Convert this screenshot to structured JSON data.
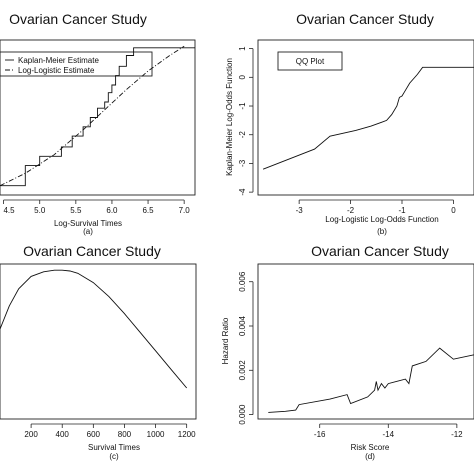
{
  "chart_data": [
    {
      "type": "line",
      "title": "Ovarian Cancer Study",
      "xlabel": "Log-Survival Times",
      "caption": "(a)",
      "xticks": [
        "4.5",
        "5.0",
        "5.5",
        "6.0",
        "6.5",
        "7.0"
      ],
      "xlim": [
        4.45,
        7.15
      ],
      "ylim": [
        0,
        1
      ],
      "legend": {
        "placement": "top-left",
        "entries": [
          "Kaplan-Meier Estimate",
          "Log-Logistic Estimate"
        ]
      },
      "series": [
        {
          "name": "Kaplan-Meier Estimate",
          "style": "step",
          "x": [
            4.45,
            4.8,
            4.8,
            5.0,
            5.0,
            5.3,
            5.3,
            5.45,
            5.45,
            5.6,
            5.6,
            5.7,
            5.7,
            5.8,
            5.8,
            5.9,
            5.9,
            5.95,
            5.95,
            6.0,
            6.0,
            6.05,
            6.05,
            6.1,
            6.1,
            6.2,
            6.2,
            6.3,
            6.3,
            6.4,
            6.4,
            7.15
          ],
          "y": [
            0.06,
            0.06,
            0.19,
            0.19,
            0.25,
            0.25,
            0.31,
            0.31,
            0.38,
            0.38,
            0.44,
            0.44,
            0.5,
            0.5,
            0.56,
            0.56,
            0.6,
            0.6,
            0.66,
            0.66,
            0.71,
            0.71,
            0.77,
            0.77,
            0.83,
            0.83,
            0.9,
            0.9,
            0.95,
            0.95,
            0.95,
            0.95
          ]
        },
        {
          "name": "Log-Logistic Estimate",
          "style": "dashdot",
          "x": [
            4.45,
            4.8,
            5.2,
            5.6,
            5.9,
            6.2,
            6.5,
            6.8,
            7.0
          ],
          "y": [
            0.06,
            0.14,
            0.26,
            0.42,
            0.55,
            0.68,
            0.8,
            0.9,
            0.96
          ]
        }
      ]
    },
    {
      "type": "line",
      "title": "Ovarian Cancer Study",
      "xlabel": "Log-Logistic Log-Odds Function",
      "ylabel": "Kaplan-Meier Log-Odds Function",
      "caption": "(b)",
      "xticks": [
        "-3",
        "-2",
        "-1",
        "0"
      ],
      "yticks": [
        "1",
        "0",
        "-1",
        "-2",
        "-3",
        "-4"
      ],
      "xlim": [
        -3.8,
        0.4
      ],
      "ylim": [
        -4.1,
        1.3
      ],
      "legend": {
        "placement": "top-left",
        "entries": [
          "QQ Plot"
        ]
      },
      "series": [
        {
          "name": "QQ Plot",
          "x": [
            -3.7,
            -2.7,
            -2.4,
            -1.9,
            -1.6,
            -1.3,
            -1.2,
            -1.1,
            -1.05,
            -1.0,
            -0.95,
            -0.85,
            -0.7,
            -0.6,
            -0.4,
            0.4
          ],
          "y": [
            -3.2,
            -2.5,
            -2.05,
            -1.85,
            -1.7,
            -1.5,
            -1.3,
            -1.0,
            -0.7,
            -0.65,
            -0.5,
            -0.2,
            0.1,
            0.35,
            0.35,
            0.35
          ]
        }
      ]
    },
    {
      "type": "line",
      "title": "Ovarian Cancer Study",
      "xlabel": "Survival Times",
      "caption": "(c)",
      "xticks": [
        "200",
        "400",
        "600",
        "800",
        "1000",
        "1200"
      ],
      "xlim": [
        0,
        1260
      ],
      "ylim": [
        0,
        1
      ],
      "series": [
        {
          "name": "",
          "x": [
            0,
            60,
            120,
            200,
            280,
            350,
            400,
            450,
            500,
            600,
            700,
            800,
            900,
            1000,
            1100,
            1200
          ],
          "y": [
            0.58,
            0.73,
            0.84,
            0.92,
            0.95,
            0.96,
            0.96,
            0.955,
            0.94,
            0.88,
            0.79,
            0.68,
            0.56,
            0.44,
            0.32,
            0.2
          ]
        }
      ]
    },
    {
      "type": "line",
      "title": "Ovarian Cancer Study",
      "xlabel": "Risk Score",
      "ylabel": "Hazard Ratio",
      "caption": "(d)",
      "xticks": [
        "-16",
        "-14",
        "-12"
      ],
      "yticks": [
        "0.000",
        "0.002",
        "0.004",
        "0.006"
      ],
      "xlim": [
        -17.8,
        -11.5
      ],
      "ylim": [
        -0.0002,
        0.0068
      ],
      "series": [
        {
          "name": "",
          "x": [
            -17.5,
            -17.0,
            -16.7,
            -16.6,
            -15.7,
            -15.2,
            -15.1,
            -14.6,
            -14.4,
            -14.35,
            -14.3,
            -14.2,
            -14.1,
            -14.0,
            -13.5,
            -13.4,
            -13.3,
            -12.9,
            -12.5,
            -12.1,
            -11.5
          ],
          "y": [
            0.0001,
            0.00015,
            0.0002,
            0.00045,
            0.0007,
            0.0009,
            0.0005,
            0.0008,
            0.0011,
            0.0015,
            0.0011,
            0.0014,
            0.0012,
            0.0014,
            0.0016,
            0.0014,
            0.0022,
            0.0024,
            0.003,
            0.0025,
            0.0027
          ]
        }
      ]
    }
  ]
}
